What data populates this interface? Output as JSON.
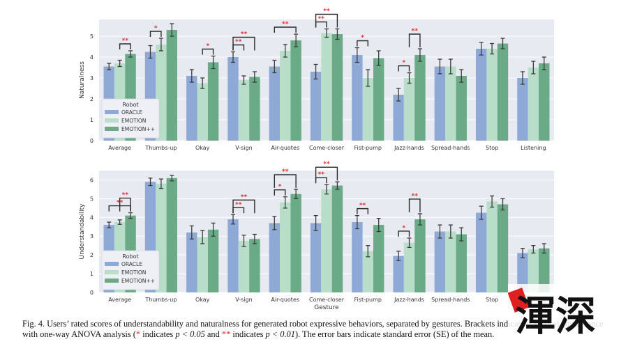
{
  "colors": {
    "oracle": "#8fa9d6",
    "emotion": "#b8ddc8",
    "emotionpp": "#6aaa86",
    "panel": "#e8eaf2",
    "grid": "#ffffff",
    "sig": "#e03030"
  },
  "chart_data": [
    {
      "type": "bar",
      "ylabel": "Naturalness",
      "xlabel": "",
      "ylim": [
        0,
        5.8
      ],
      "yticks": [
        0,
        1,
        2,
        3,
        4,
        5
      ],
      "categories": [
        "Average",
        "Thumbs-up",
        "Okay",
        "V-sign",
        "Air-quotes",
        "Come-closer",
        "Fist-pump",
        "Jazz-hands",
        "Spread-hands",
        "Stop",
        "Listening"
      ],
      "legend_title": "Robot",
      "legend_position": "lower-left",
      "series": [
        {
          "name": "ORACLE",
          "values": [
            3.55,
            4.25,
            3.1,
            4.0,
            3.55,
            3.3,
            4.1,
            2.2,
            3.55,
            4.4,
            3.0
          ],
          "errors": [
            0.15,
            0.3,
            0.3,
            0.25,
            0.3,
            0.35,
            0.35,
            0.3,
            0.35,
            0.3,
            0.3
          ]
        },
        {
          "name": "EMOTION",
          "values": [
            3.7,
            4.6,
            2.75,
            2.9,
            4.3,
            5.15,
            3.0,
            3.0,
            3.55,
            4.4,
            3.5
          ]
        },
        {
          "name": "EMOTION++",
          "values": [
            4.15,
            5.3,
            3.75,
            3.05,
            4.8,
            5.1,
            3.95,
            4.1,
            3.1,
            4.65,
            3.7
          ]
        }
      ],
      "errors": [
        [
          0.15,
          0.3,
          0.3,
          0.25,
          0.3,
          0.35,
          0.35,
          0.3,
          0.35,
          0.3,
          0.3
        ],
        [
          0.15,
          0.3,
          0.25,
          0.2,
          0.3,
          0.2,
          0.4,
          0.25,
          0.35,
          0.25,
          0.3
        ],
        [
          0.15,
          0.3,
          0.3,
          0.25,
          0.3,
          0.25,
          0.35,
          0.3,
          0.3,
          0.25,
          0.3
        ]
      ],
      "significance": [
        {
          "category": 0,
          "from": 1,
          "to": 2,
          "label": "**"
        },
        {
          "category": 1,
          "from": 0,
          "to": 1,
          "label": "*"
        },
        {
          "category": 2,
          "from": 1,
          "to": 2,
          "label": "*"
        },
        {
          "category": 3,
          "from": 0,
          "to": 1,
          "label": "**"
        },
        {
          "category": 3,
          "from": 0,
          "to": 2,
          "label": "**"
        },
        {
          "category": 4,
          "from": 0,
          "to": 2,
          "label": "**"
        },
        {
          "category": 5,
          "from": 0,
          "to": 1,
          "label": "**"
        },
        {
          "category": 5,
          "from": 0,
          "to": 2,
          "label": "**"
        },
        {
          "category": 6,
          "from": 0,
          "to": 1,
          "label": "*"
        },
        {
          "category": 7,
          "from": 0,
          "to": 1,
          "label": "*"
        },
        {
          "category": 7,
          "from": 1,
          "to": 2,
          "label": "**"
        }
      ]
    },
    {
      "type": "bar",
      "ylabel": "Understandability",
      "xlabel": "Gesture",
      "ylim": [
        0,
        6.5
      ],
      "yticks": [
        0,
        1,
        2,
        3,
        4,
        5,
        6
      ],
      "categories": [
        "Average",
        "Thumbs-up",
        "Okay",
        "V-sign",
        "Air-quotes",
        "Come-closer",
        "Fist-pump",
        "Jazz-hands",
        "Spread-hands",
        "Stop",
        "Listening"
      ],
      "legend_title": "Robot",
      "legend_position": "lower-left",
      "series": [
        {
          "name": "ORACLE",
          "values": [
            3.6,
            5.9,
            3.2,
            3.9,
            3.7,
            3.7,
            3.75,
            1.95,
            3.25,
            4.25,
            2.1
          ]
        },
        {
          "name": "EMOTION",
          "values": [
            3.75,
            5.8,
            2.95,
            2.75,
            4.8,
            5.5,
            2.2,
            2.65,
            3.25,
            4.85,
            2.3
          ]
        },
        {
          "name": "EMOTION++",
          "values": [
            4.1,
            6.1,
            3.35,
            2.85,
            5.25,
            5.7,
            3.6,
            3.9,
            3.1,
            4.7,
            2.35
          ]
        }
      ],
      "errors": [
        [
          0.15,
          0.2,
          0.35,
          0.25,
          0.35,
          0.4,
          0.35,
          0.25,
          0.35,
          0.35,
          0.25
        ],
        [
          0.12,
          0.25,
          0.35,
          0.3,
          0.3,
          0.25,
          0.3,
          0.25,
          0.35,
          0.3,
          0.2
        ],
        [
          0.15,
          0.15,
          0.35,
          0.25,
          0.25,
          0.2,
          0.35,
          0.3,
          0.35,
          0.3,
          0.25
        ]
      ],
      "significance": [
        {
          "category": 0,
          "from": 0,
          "to": 2,
          "label": "**"
        },
        {
          "category": 0,
          "from": 1,
          "to": 2,
          "label": "**"
        },
        {
          "category": 3,
          "from": 0,
          "to": 1,
          "label": "**"
        },
        {
          "category": 3,
          "from": 0,
          "to": 2,
          "label": "**"
        },
        {
          "category": 4,
          "from": 0,
          "to": 1,
          "label": "*"
        },
        {
          "category": 4,
          "from": 0,
          "to": 2,
          "label": "**"
        },
        {
          "category": 5,
          "from": 0,
          "to": 1,
          "label": "**"
        },
        {
          "category": 5,
          "from": 0,
          "to": 2,
          "label": "**"
        },
        {
          "category": 6,
          "from": 0,
          "to": 1,
          "label": "**"
        },
        {
          "category": 7,
          "from": 0,
          "to": 1,
          "label": "*"
        },
        {
          "category": 7,
          "from": 1,
          "to": 2,
          "label": "**"
        }
      ]
    }
  ],
  "caption": {
    "lead": "Fig. 4.   Users’ rated scores of understandability and naturalness for generated robot expressive behaviors, separated by gestures. ",
    "hidden_mid": "Brackets indicate statistical",
    "line2_a": "significance with one-way ANOVA analysis (",
    "star1": "*",
    "line2_b": " indicates ",
    "p1": "p < 0.05",
    "line2_c": " and ",
    "star2": "**",
    "line2_d": " indicates ",
    "p2": "p < 0.01",
    "line2_e": "). The error bars indicate standard error (SE) of the mean."
  },
  "logo": {
    "text": "渾深"
  }
}
